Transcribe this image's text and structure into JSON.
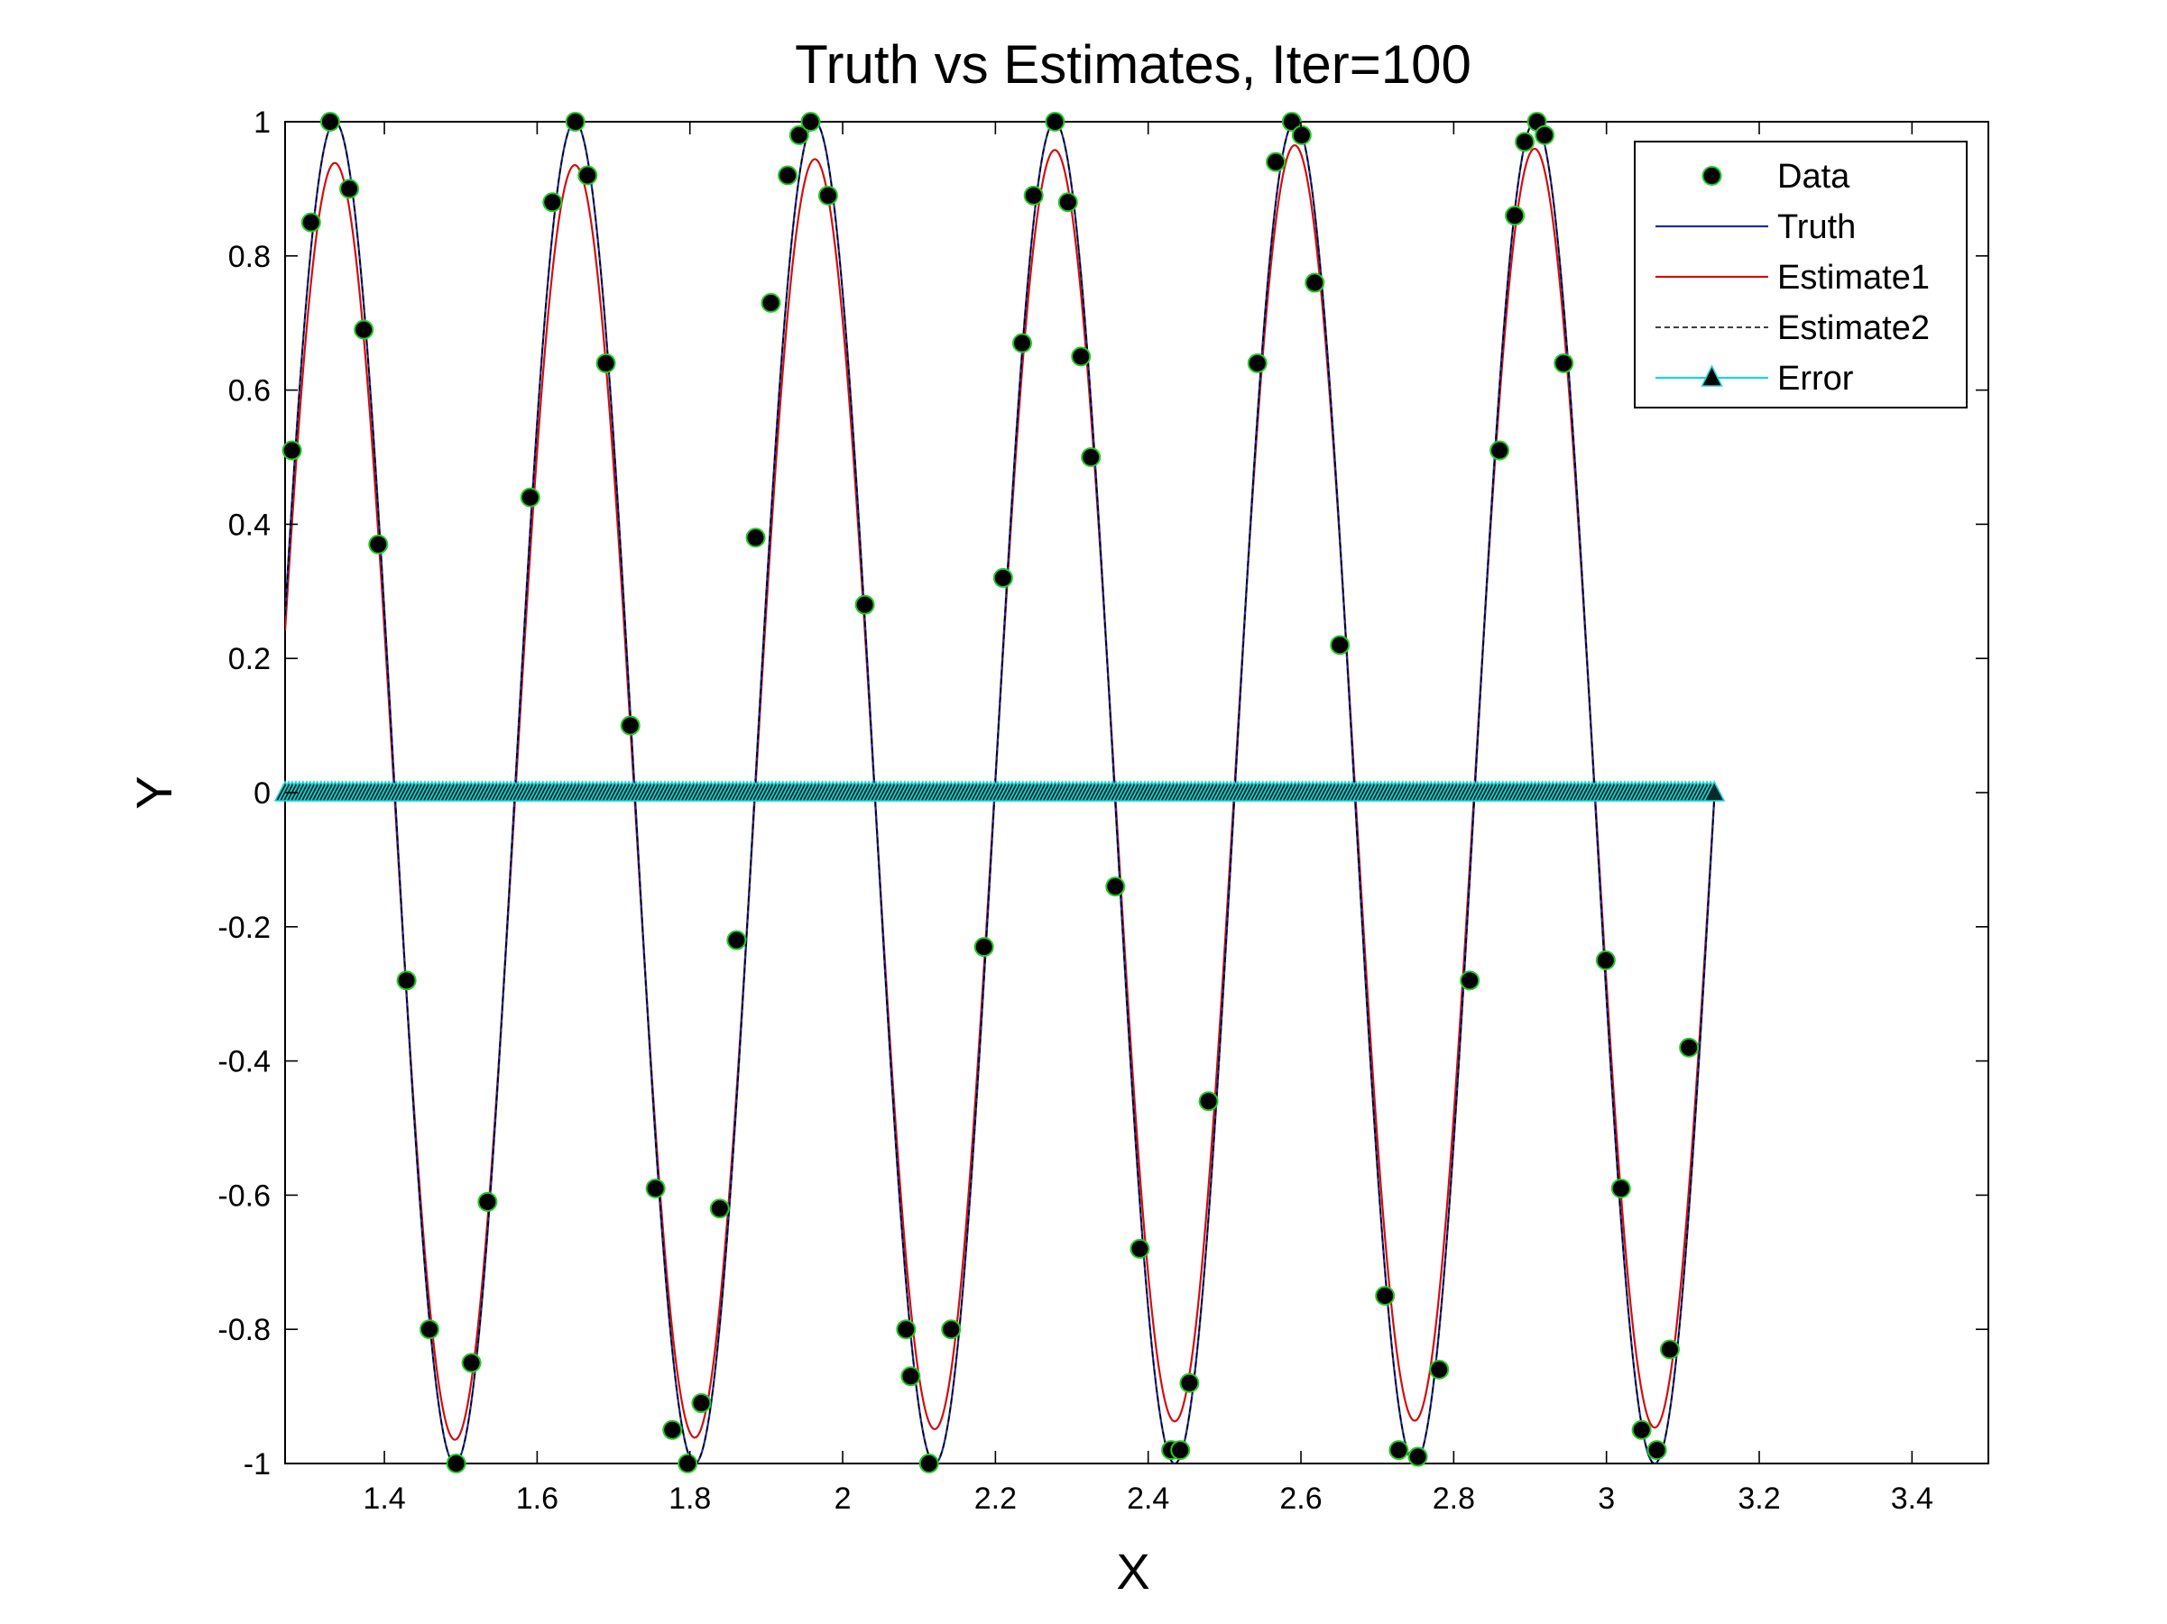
{
  "chart_data": {
    "type": "line",
    "title": "Truth vs Estimates, Iter=100",
    "xlabel": "X",
    "ylabel": "Y",
    "xlim": [
      1.27,
      3.5
    ],
    "ylim": [
      -1,
      1
    ],
    "xticks": [
      "1.4",
      "1.6",
      "1.8",
      "2",
      "2.2",
      "2.4",
      "2.6",
      "2.8",
      "3",
      "3.2",
      "3.4"
    ],
    "yticks": [
      "1",
      "0.8",
      "0.6",
      "0.4",
      "0.2",
      "0",
      "-0.2",
      "-0.4",
      "-0.6",
      "-0.8",
      "-1"
    ],
    "grid": false,
    "legend": {
      "location": "top-right",
      "entries": [
        "Data",
        "Truth",
        "Estimate1",
        "Estimate2",
        "Error"
      ]
    },
    "colors": {
      "data_marker": "#000000",
      "data_edge": "#22cc22",
      "truth": "#1f2f9f",
      "estimate1": "#d01010",
      "estimate2": "#000000",
      "error": "#18d8d8"
    },
    "series": [
      {
        "name": "Data",
        "style": "markers",
        "x": [
          1.279,
          1.304,
          1.329,
          1.354,
          1.373,
          1.392,
          1.429,
          1.459,
          1.494,
          1.514,
          1.535,
          1.591,
          1.62,
          1.65,
          1.666,
          1.69,
          1.722,
          1.755,
          1.777,
          1.797,
          1.815,
          1.839,
          1.861,
          1.886,
          1.906,
          1.928,
          1.943,
          1.958,
          1.981,
          2.029,
          2.083,
          2.089,
          2.113,
          2.142,
          2.185,
          2.21,
          2.235,
          2.25,
          2.278,
          2.295,
          2.312,
          2.325,
          2.357,
          2.389,
          2.43,
          2.442,
          2.454,
          2.479,
          2.543,
          2.567,
          2.588,
          2.601,
          2.618,
          2.651,
          2.71,
          2.728,
          2.753,
          2.781,
          2.821,
          2.86,
          2.88,
          2.893,
          2.909,
          2.919,
          2.944,
          2.999,
          3.019,
          3.046,
          3.066,
          3.083,
          3.108
        ],
        "y": [
          0.51,
          0.85,
          1.0,
          0.9,
          0.69,
          0.37,
          -0.28,
          -0.8,
          -1.0,
          -0.85,
          -0.61,
          0.44,
          0.88,
          1.0,
          0.92,
          0.64,
          0.1,
          -0.59,
          -0.95,
          -1.0,
          -0.91,
          -0.62,
          -0.22,
          0.38,
          0.73,
          0.92,
          0.98,
          1.0,
          0.89,
          0.28,
          -0.8,
          -0.87,
          -1.0,
          -0.8,
          -0.23,
          0.32,
          0.67,
          0.89,
          1.0,
          0.88,
          0.65,
          0.5,
          -0.14,
          -0.68,
          -0.98,
          -0.98,
          -0.88,
          -0.46,
          0.64,
          0.94,
          1.0,
          0.98,
          0.76,
          0.22,
          -0.75,
          -0.98,
          -0.99,
          -0.86,
          -0.28,
          0.51,
          0.86,
          0.97,
          1.0,
          0.98,
          0.64,
          -0.25,
          -0.59,
          -0.95,
          -0.98,
          -0.83,
          -0.38
        ]
      },
      {
        "name": "Truth",
        "style": "line",
        "formula": "sin(20x)",
        "x_range": [
          1.27,
          3.141
        ]
      },
      {
        "name": "Estimate1",
        "style": "line",
        "formula": "0.95*sin(20x), slightly damped peaks",
        "x_range": [
          1.27,
          3.141
        ]
      },
      {
        "name": "Estimate2",
        "style": "dashed",
        "formula": "sin(20x)",
        "x_range": [
          1.27,
          3.141
        ]
      },
      {
        "name": "Error",
        "style": "line-triangles",
        "constant_y": 0,
        "x_range": [
          1.27,
          3.141
        ]
      }
    ]
  }
}
